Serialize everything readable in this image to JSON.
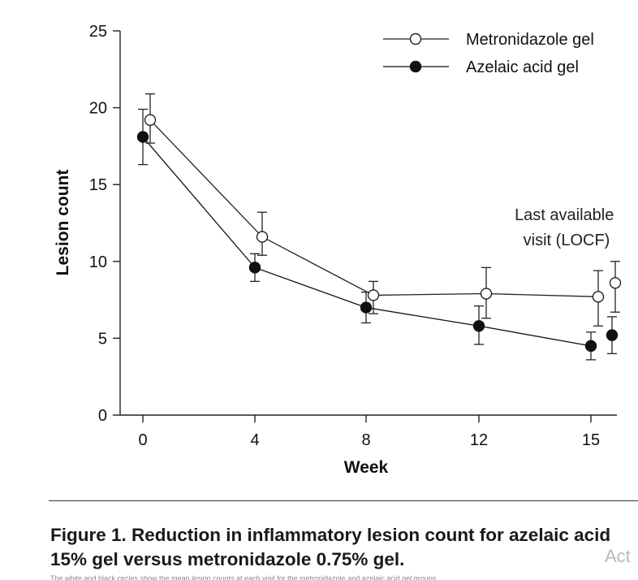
{
  "chart_data": {
    "type": "line",
    "xlabel": "Week",
    "ylabel": "Lesion count",
    "ylim": [
      0,
      25
    ],
    "y_ticks": [
      0,
      5,
      10,
      15,
      20,
      25
    ],
    "x_ticks": [
      "0",
      "4",
      "8",
      "12",
      "15"
    ],
    "x_note": "Last available visit (LOCF)",
    "x_note_lines": [
      "Last available",
      "visit (LOCF)"
    ],
    "legend_position": "top-right",
    "grid": false,
    "series": [
      {
        "name": "Metronidazole gel",
        "marker": "open-circle",
        "color": "#222222",
        "points": [
          {
            "x": "0",
            "y": 19.2,
            "err_low": 1.5,
            "err_high": 1.7
          },
          {
            "x": "4",
            "y": 11.6,
            "err_low": 1.2,
            "err_high": 1.6
          },
          {
            "x": "8",
            "y": 7.8,
            "err_low": 1.2,
            "err_high": 0.9
          },
          {
            "x": "12",
            "y": 7.9,
            "err_low": 1.6,
            "err_high": 1.7
          },
          {
            "x": "15",
            "y": 7.7,
            "err_low": 1.9,
            "err_high": 1.7
          },
          {
            "x": "LOCF",
            "y": 8.6,
            "err_low": 1.9,
            "err_high": 1.4
          }
        ]
      },
      {
        "name": "Azelaic acid gel",
        "marker": "filled-circle",
        "color": "#111111",
        "points": [
          {
            "x": "0",
            "y": 18.1,
            "err_low": 1.8,
            "err_high": 1.8
          },
          {
            "x": "4",
            "y": 9.6,
            "err_low": 0.9,
            "err_high": 0.9
          },
          {
            "x": "8",
            "y": 7.0,
            "err_low": 1.0,
            "err_high": 1.0
          },
          {
            "x": "12",
            "y": 5.8,
            "err_low": 1.2,
            "err_high": 1.3
          },
          {
            "x": "15",
            "y": 4.5,
            "err_low": 0.9,
            "err_high": 0.9
          },
          {
            "x": "LOCF",
            "y": 5.2,
            "err_low": 1.2,
            "err_high": 1.2
          }
        ]
      }
    ]
  },
  "caption": "Figure 1. Reduction in inflammatory lesion count for azelaic acid 15% gel versus metronidazole 0.75% gel.",
  "watermark": "Act",
  "smallprint": "The white and black circles show the mean lesion counts at each visit for the metronidazole and azelaic acid gel groups."
}
